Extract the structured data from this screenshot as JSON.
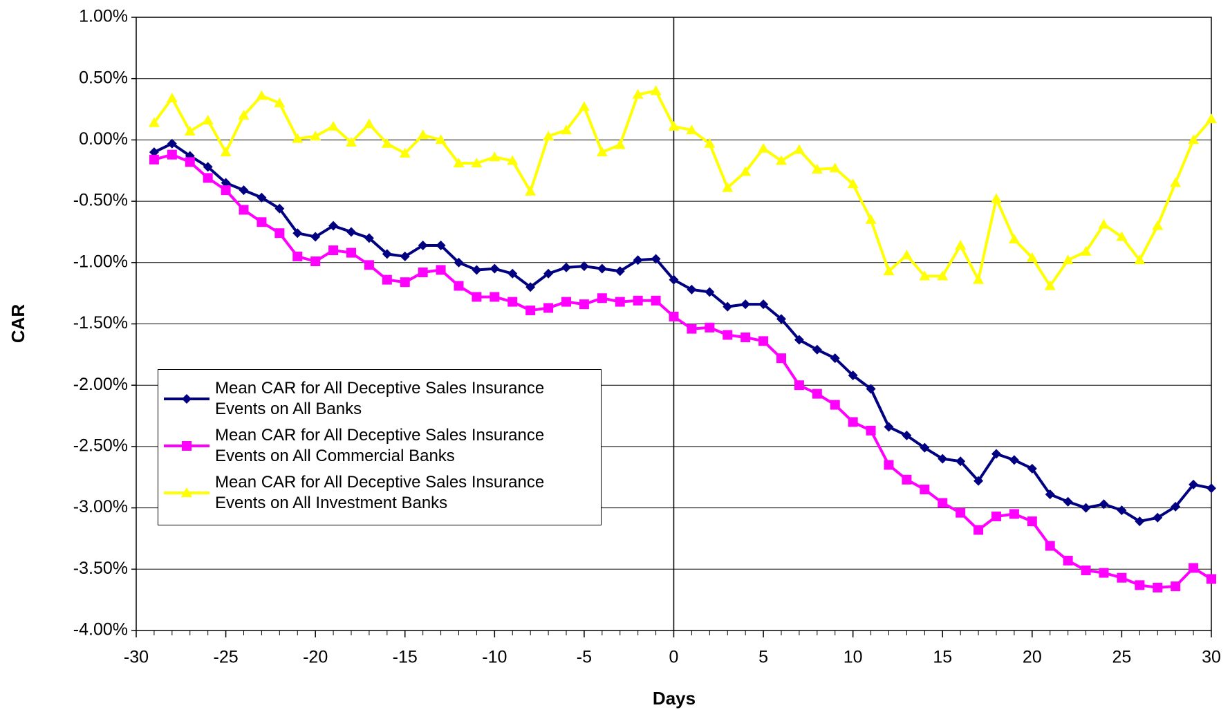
{
  "chart_data": {
    "type": "line",
    "y_label": "CAR",
    "x_label": "Days",
    "x": [
      -29,
      -28,
      -27,
      -26,
      -25,
      -24,
      -23,
      -22,
      -21,
      -20,
      -19,
      -18,
      -17,
      -16,
      -15,
      -14,
      -13,
      -12,
      -11,
      -10,
      -9,
      -8,
      -7,
      -6,
      -5,
      -4,
      -3,
      -2,
      -1,
      0,
      1,
      2,
      3,
      4,
      5,
      6,
      7,
      8,
      9,
      10,
      11,
      12,
      13,
      14,
      15,
      16,
      17,
      18,
      19,
      20,
      21,
      22,
      23,
      24,
      25,
      26,
      27,
      28,
      29,
      30
    ],
    "series": [
      {
        "name": "Mean CAR for All Deceptive Sales Insurance Events on All Banks",
        "color": "#000080",
        "marker": "diamond",
        "values": [
          -0.1,
          -0.03,
          -0.13,
          -0.22,
          -0.35,
          -0.41,
          -0.47,
          -0.56,
          -0.76,
          -0.79,
          -0.7,
          -0.75,
          -0.8,
          -0.93,
          -0.95,
          -0.86,
          -0.86,
          -1.0,
          -1.06,
          -1.05,
          -1.09,
          -1.2,
          -1.09,
          -1.04,
          -1.03,
          -1.05,
          -1.07,
          -0.98,
          -0.97,
          -1.14,
          -1.22,
          -1.24,
          -1.36,
          -1.34,
          -1.34,
          -1.46,
          -1.63,
          -1.71,
          -1.78,
          -1.92,
          -2.03,
          -2.34,
          -2.41,
          -2.51,
          -2.6,
          -2.62,
          -2.78,
          -2.56,
          -2.61,
          -2.68,
          -2.89,
          -2.95,
          -3.0,
          -2.97,
          -3.02,
          -3.11,
          -3.08,
          -2.99,
          -2.81,
          -2.84
        ]
      },
      {
        "name": "Mean CAR for All Deceptive Sales Insurance Events on All Commercial Banks",
        "color": "#ff00ff",
        "marker": "square",
        "values": [
          -0.16,
          -0.12,
          -0.18,
          -0.31,
          -0.41,
          -0.57,
          -0.67,
          -0.76,
          -0.95,
          -0.99,
          -0.9,
          -0.92,
          -1.02,
          -1.14,
          -1.16,
          -1.08,
          -1.06,
          -1.19,
          -1.28,
          -1.28,
          -1.32,
          -1.39,
          -1.37,
          -1.32,
          -1.34,
          -1.29,
          -1.32,
          -1.31,
          -1.31,
          -1.44,
          -1.54,
          -1.53,
          -1.59,
          -1.61,
          -1.64,
          -1.78,
          -2.0,
          -2.07,
          -2.16,
          -2.3,
          -2.37,
          -2.65,
          -2.77,
          -2.85,
          -2.96,
          -3.04,
          -3.18,
          -3.07,
          -3.05,
          -3.11,
          -3.31,
          -3.43,
          -3.51,
          -3.53,
          -3.57,
          -3.63,
          -3.65,
          -3.64,
          -3.49,
          -3.58
        ]
      },
      {
        "name": "Mean CAR for All Deceptive Sales Insurance Events on All Investment Banks",
        "color": "#ffff00",
        "marker": "triangle",
        "values": [
          0.14,
          0.34,
          0.07,
          0.16,
          -0.1,
          0.2,
          0.36,
          0.3,
          0.01,
          0.03,
          0.11,
          -0.02,
          0.13,
          -0.03,
          -0.11,
          0.04,
          0.0,
          -0.19,
          -0.19,
          -0.14,
          -0.17,
          -0.42,
          0.03,
          0.08,
          0.27,
          -0.1,
          -0.04,
          0.37,
          0.4,
          0.11,
          0.08,
          -0.03,
          -0.39,
          -0.26,
          -0.07,
          -0.17,
          -0.08,
          -0.24,
          -0.23,
          -0.36,
          -0.65,
          -1.07,
          -0.94,
          -1.11,
          -1.11,
          -0.86,
          -1.14,
          -0.48,
          -0.81,
          -0.96,
          -1.19,
          -0.98,
          -0.91,
          -0.69,
          -0.79,
          -0.98,
          -0.7,
          -0.35,
          0.0,
          0.17
        ]
      }
    ],
    "xlim": [
      -30,
      30
    ],
    "xticks": [
      -30,
      -25,
      -20,
      -15,
      -10,
      -5,
      0,
      5,
      10,
      15,
      20,
      25,
      30
    ],
    "ylim": [
      -4,
      1
    ],
    "yticks": [
      {
        "value": -4,
        "label": "-4.00%"
      },
      {
        "value": -3.5,
        "label": "-3.50%"
      },
      {
        "value": -3,
        "label": "-3.00%"
      },
      {
        "value": -2.5,
        "label": "-2.50%"
      },
      {
        "value": -2,
        "label": "-2.00%"
      },
      {
        "value": -1.5,
        "label": "-1.50%"
      },
      {
        "value": -1,
        "label": "-1.00%"
      },
      {
        "value": -0.5,
        "label": "-0.50%"
      },
      {
        "value": 0,
        "label": "0.00%"
      },
      {
        "value": 0.5,
        "label": "0.50%"
      },
      {
        "value": 1,
        "label": "1.00%"
      }
    ],
    "grid": true
  }
}
